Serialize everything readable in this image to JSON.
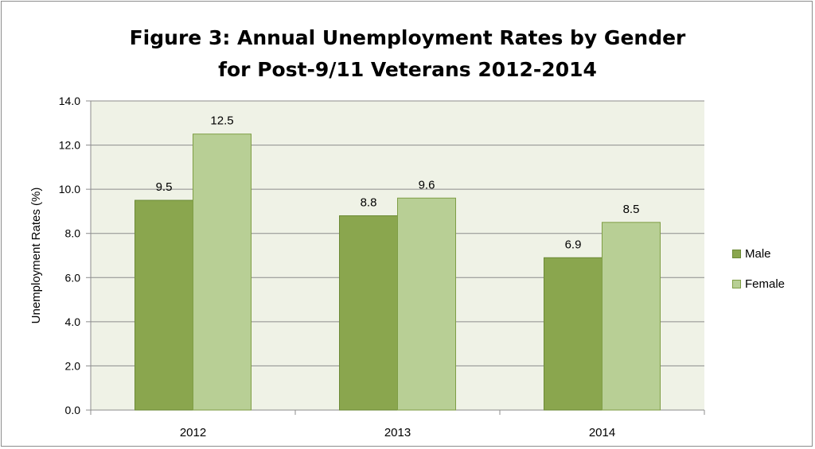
{
  "chart_data": {
    "type": "bar",
    "title_lines": [
      "Figure 3: Annual Unemployment Rates by Gender",
      "for Post-9/11 Veterans 2012-2014"
    ],
    "xlabel": "",
    "ylabel": "Unemployment Rates (%)",
    "categories": [
      "2012",
      "2013",
      "2014"
    ],
    "series": [
      {
        "name": "Male",
        "values": [
          9.5,
          8.8,
          6.9
        ],
        "labels": [
          "9.5",
          "8.8",
          "6.9"
        ],
        "color": "#8aa64e",
        "stroke": "#6b8a35"
      },
      {
        "name": "Female",
        "values": [
          12.5,
          9.6,
          8.5
        ],
        "labels": [
          "12.5",
          "9.6",
          "8.5"
        ],
        "color": "#b8cf95",
        "stroke": "#7f9e45"
      }
    ],
    "ylim": [
      0,
      14
    ],
    "yticks": [
      "0.0",
      "2.0",
      "4.0",
      "6.0",
      "8.0",
      "10.0",
      "12.0",
      "14.0"
    ],
    "grid": true,
    "plot_background": "#eff2e6",
    "legend_position": "right"
  }
}
